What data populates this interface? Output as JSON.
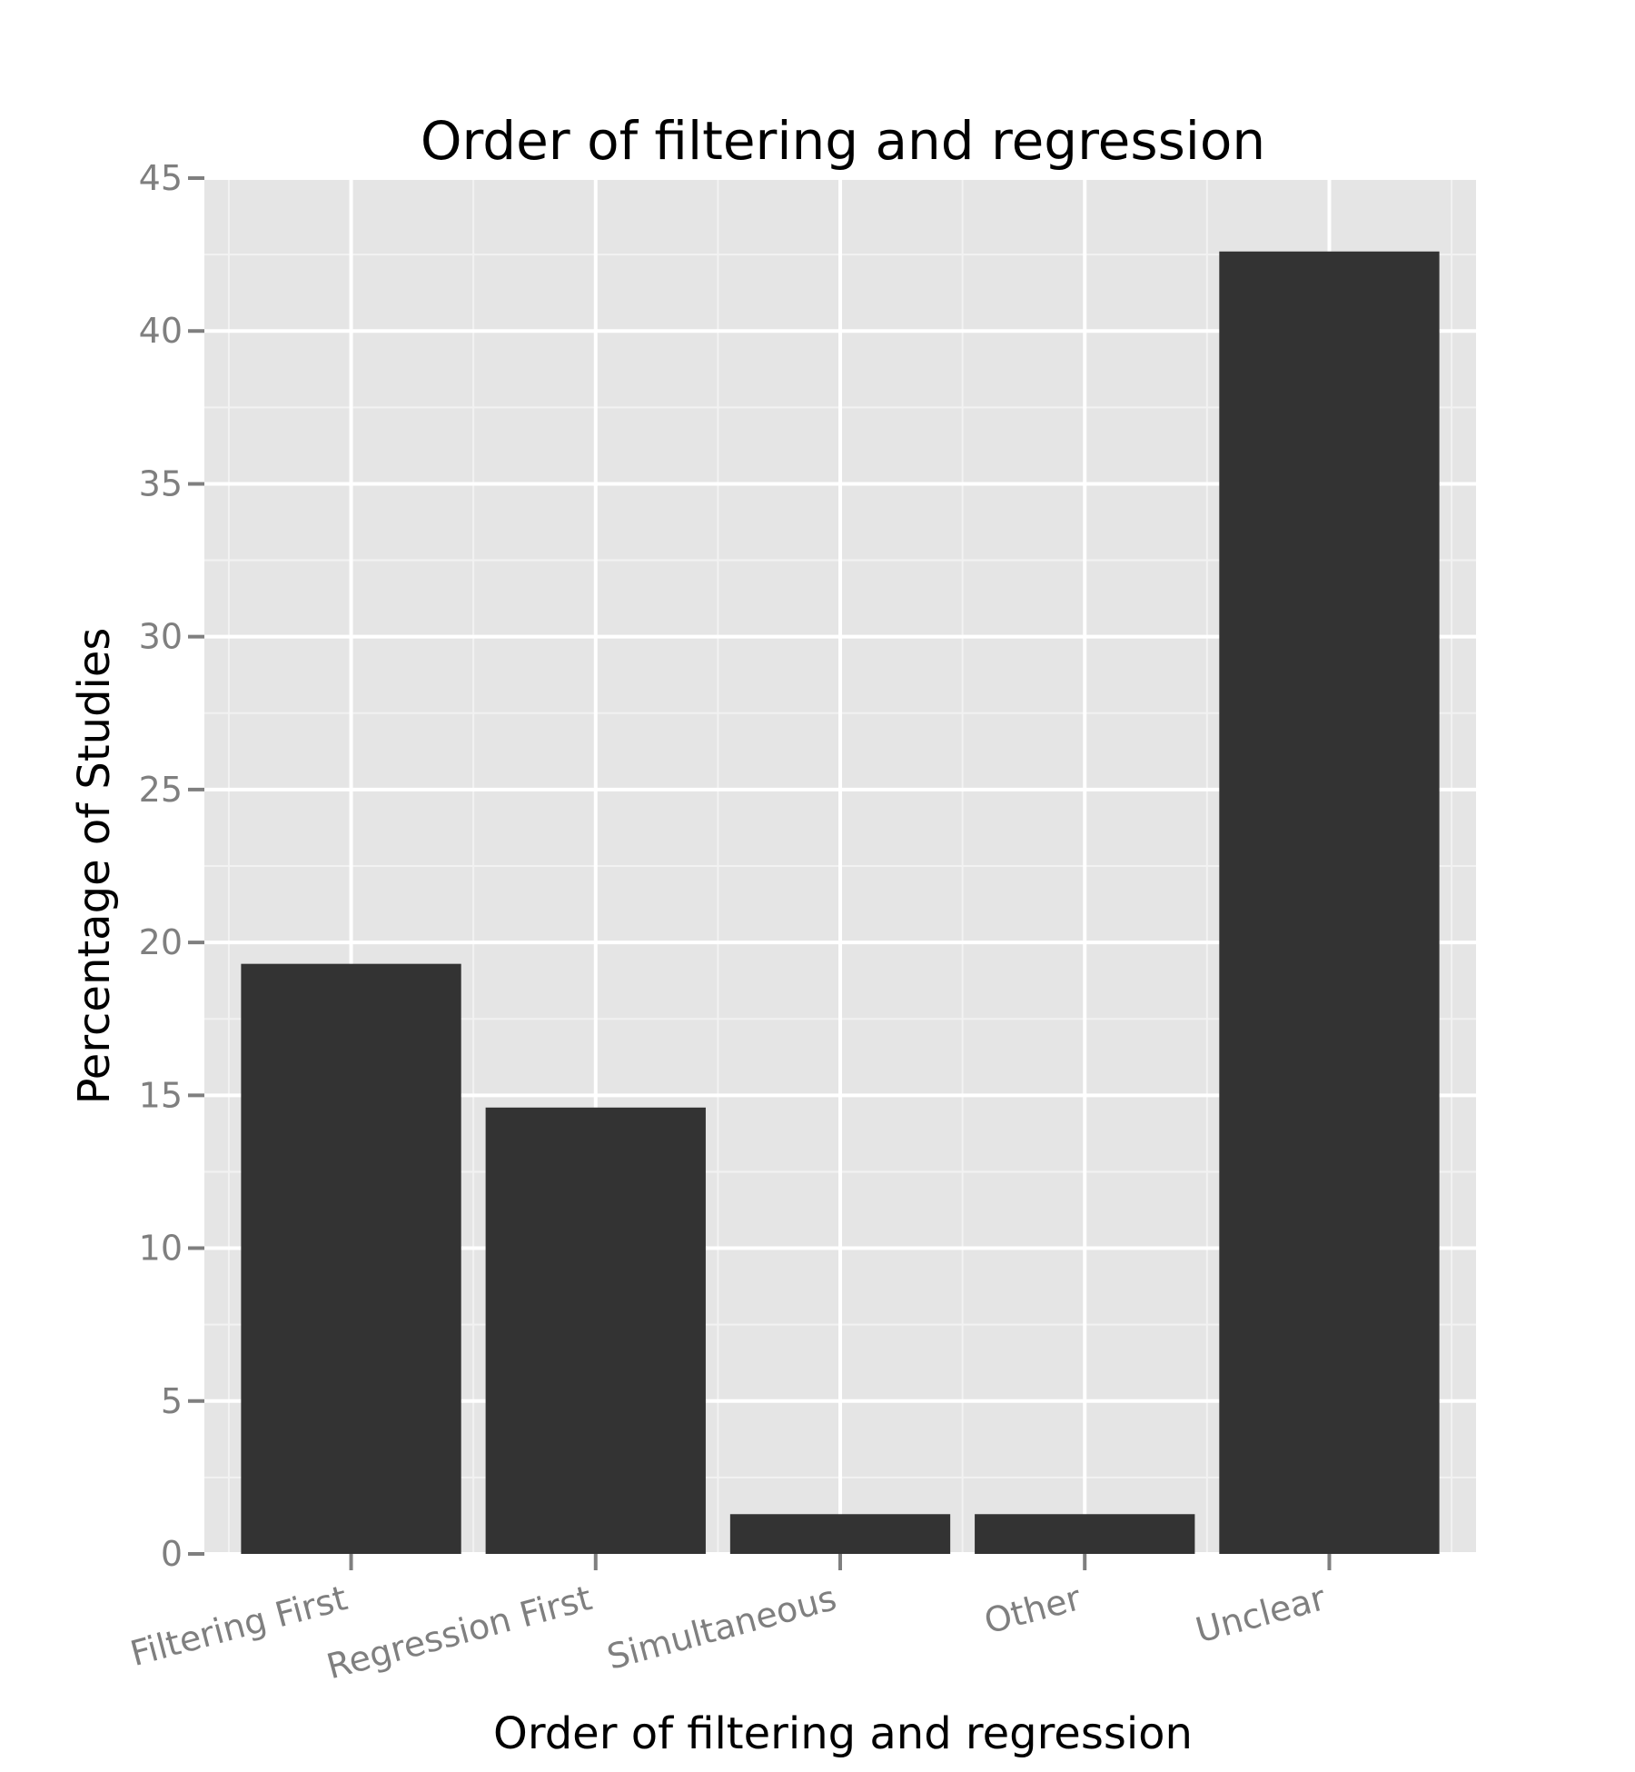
{
  "chart_data": {
    "type": "bar",
    "title": "Order of filtering and regression",
    "xlabel": "Order of filtering and regression",
    "ylabel": "Percentage of Studies",
    "categories": [
      "Filtering First",
      "Regression First",
      "Simultaneous",
      "Other",
      "Unclear"
    ],
    "values": [
      19.3,
      14.6,
      1.3,
      1.3,
      42.6
    ],
    "ylim": [
      0,
      45
    ],
    "yticks": [
      0,
      5,
      10,
      15,
      20,
      25,
      30,
      35,
      40,
      45
    ],
    "grid": true,
    "legend": "none",
    "colors": {
      "bar": "#333333",
      "panel": "#e5e5e5",
      "grid_major": "#ffffff",
      "grid_minor": "#f2f2f2",
      "tick": "#7f7f7f"
    }
  }
}
